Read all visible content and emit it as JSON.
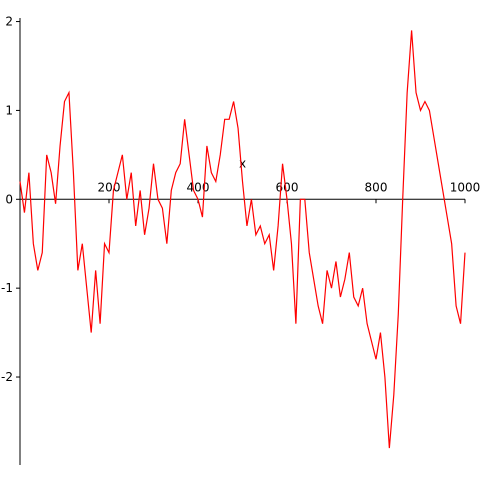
{
  "chart_data": {
    "type": "line",
    "x_label": "x",
    "color": "#ff0000",
    "xlim": [
      0,
      1000
    ],
    "ylim": [
      -2.99,
      2.04
    ],
    "xticks": [
      200,
      400,
      600,
      800,
      1000
    ],
    "yticks": [
      -2,
      -1,
      0,
      1,
      2
    ],
    "x": [
      0,
      10,
      20,
      30,
      40,
      50,
      60,
      70,
      80,
      90,
      100,
      110,
      120,
      130,
      140,
      150,
      160,
      170,
      180,
      190,
      200,
      210,
      220,
      230,
      240,
      250,
      260,
      270,
      280,
      290,
      300,
      310,
      320,
      330,
      340,
      350,
      360,
      370,
      380,
      390,
      400,
      410,
      420,
      430,
      440,
      450,
      460,
      470,
      480,
      490,
      500,
      510,
      520,
      530,
      540,
      550,
      560,
      570,
      580,
      590,
      600,
      610,
      620,
      630,
      640,
      650,
      660,
      670,
      680,
      690,
      700,
      710,
      720,
      730,
      740,
      750,
      760,
      770,
      780,
      790,
      800,
      810,
      820,
      830,
      840,
      850,
      860,
      870,
      880,
      890,
      900,
      910,
      920,
      930,
      940,
      950,
      960,
      970,
      980,
      990,
      1000
    ],
    "values": [
      0.2,
      -0.15,
      0.3,
      -0.5,
      -0.8,
      -0.6,
      0.5,
      0.3,
      -0.05,
      0.6,
      1.1,
      1.2,
      0.3,
      -0.8,
      -0.5,
      -1.0,
      -1.5,
      -0.8,
      -1.4,
      -0.5,
      -0.6,
      0.1,
      0.3,
      0.5,
      0.0,
      0.3,
      -0.3,
      0.1,
      -0.4,
      -0.1,
      0.4,
      0.0,
      -0.1,
      -0.5,
      0.1,
      0.3,
      0.4,
      0.9,
      0.5,
      0.1,
      0.0,
      -0.2,
      0.6,
      0.3,
      0.2,
      0.5,
      0.9,
      0.9,
      1.1,
      0.8,
      0.2,
      -0.3,
      0.0,
      -0.4,
      -0.3,
      -0.5,
      -0.4,
      -0.8,
      -0.3,
      0.4,
      0.0,
      -0.5,
      -1.4,
      0.0,
      0.0,
      -0.6,
      -0.9,
      -1.2,
      -1.4,
      -0.8,
      -1.0,
      -0.7,
      -1.1,
      -0.9,
      -0.6,
      -1.1,
      -1.2,
      -1.0,
      -1.4,
      -1.6,
      -1.8,
      -1.5,
      -2.0,
      -2.8,
      -2.2,
      -1.3,
      0.0,
      1.2,
      1.9,
      1.2,
      1.0,
      1.1,
      1.0,
      0.7,
      0.4,
      0.1,
      -0.2,
      -0.5,
      -1.2,
      -1.4,
      -0.6
    ]
  }
}
